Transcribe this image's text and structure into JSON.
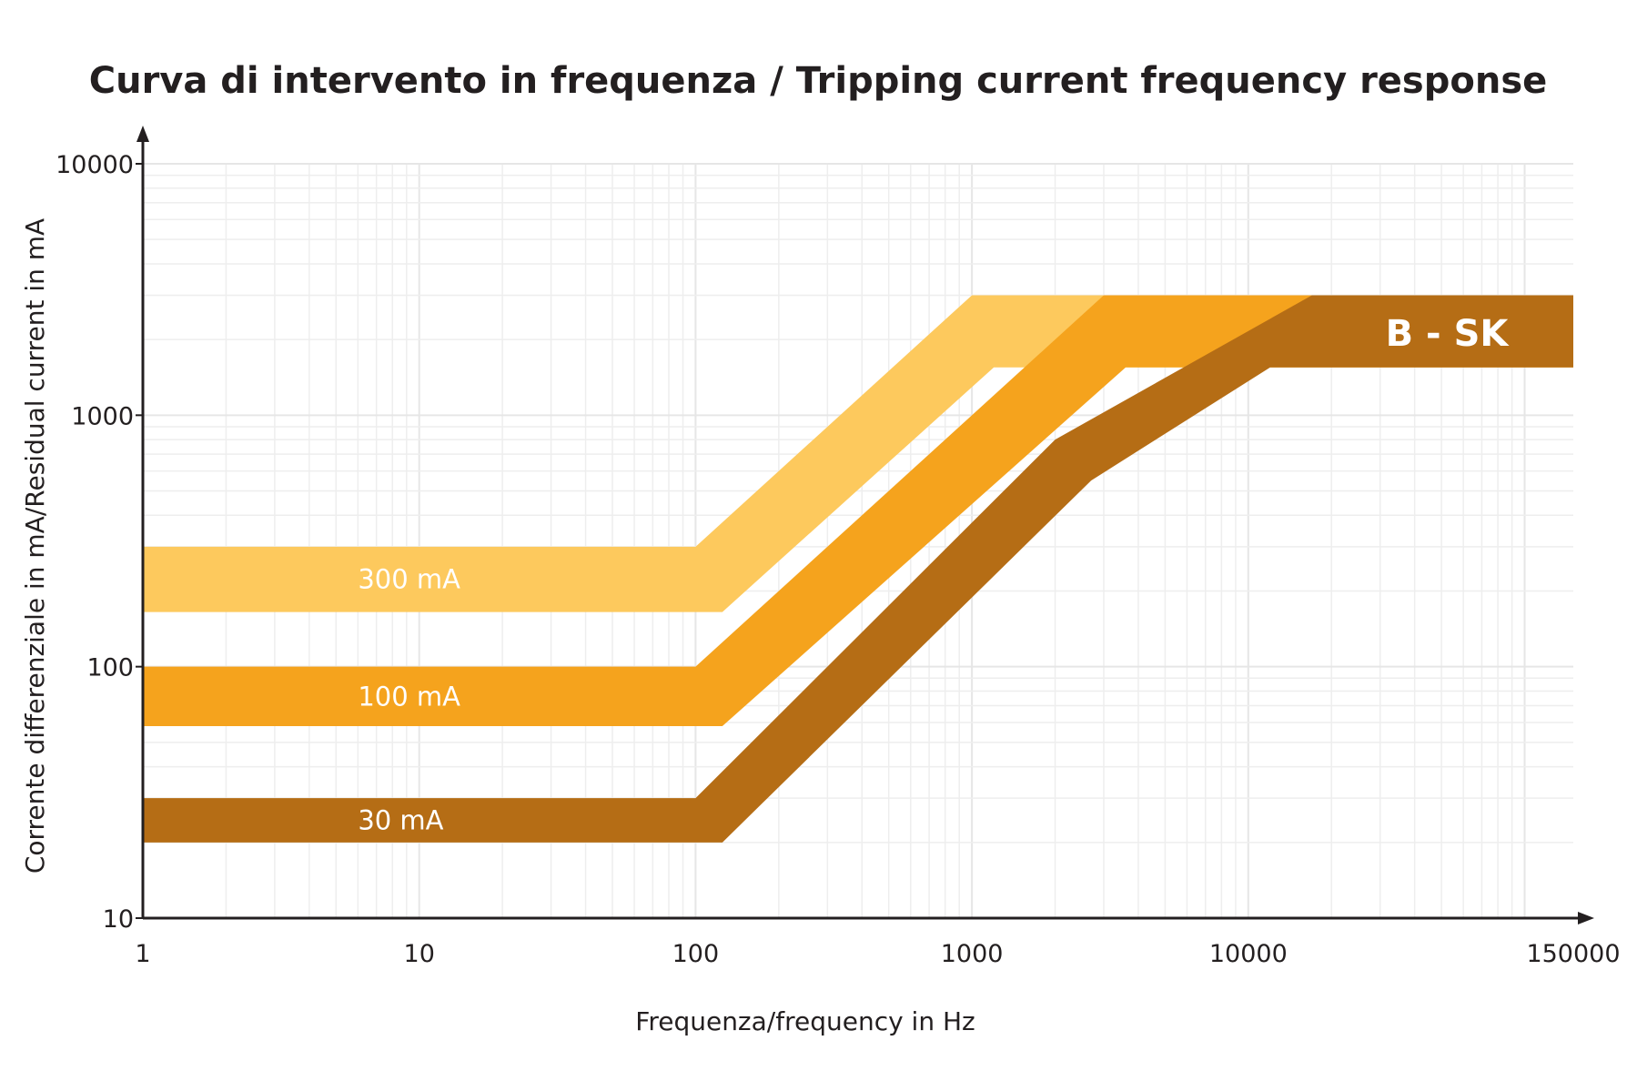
{
  "chart_data": {
    "type": "area",
    "title": "Curva di intervento in frequenza / Tripping current frequency response",
    "xlabel": "Frequenza/frequency in Hz",
    "ylabel": "Corrente differenziale in mA/Residual current in mA",
    "x_scale": "log",
    "y_scale": "log",
    "xlim": [
      1,
      150000
    ],
    "ylim": [
      10,
      10000
    ],
    "x_ticks": [
      "1",
      "10",
      "100",
      "1000",
      "10000",
      "150000"
    ],
    "x_tick_values": [
      1,
      10,
      100,
      1000,
      10000,
      150000
    ],
    "y_ticks": [
      "10",
      "100",
      "1000",
      "10000"
    ],
    "y_tick_values": [
      10,
      100,
      1000,
      10000
    ],
    "grid": true,
    "annotation": "B - SK",
    "series": [
      {
        "name": "300 mA",
        "color": "#fdc95d",
        "upper": [
          [
            1,
            300
          ],
          [
            100,
            300
          ],
          [
            1000,
            3000
          ],
          [
            150000,
            3000
          ]
        ],
        "lower": [
          [
            1,
            165
          ],
          [
            125,
            165
          ],
          [
            1200,
            1550
          ],
          [
            150000,
            1550
          ]
        ]
      },
      {
        "name": "100 mA",
        "color": "#f5a31d",
        "upper": [
          [
            1,
            100
          ],
          [
            100,
            100
          ],
          [
            3000,
            3000
          ],
          [
            150000,
            3000
          ]
        ],
        "lower": [
          [
            1,
            58
          ],
          [
            125,
            58
          ],
          [
            3600,
            1550
          ],
          [
            150000,
            1550
          ]
        ]
      },
      {
        "name": "30 mA",
        "color": "#b56d15",
        "upper": [
          [
            1,
            30
          ],
          [
            100,
            30
          ],
          [
            2000,
            800
          ],
          [
            17000,
            3000
          ],
          [
            150000,
            3000
          ]
        ],
        "lower": [
          [
            1,
            20
          ],
          [
            125,
            20
          ],
          [
            2700,
            550
          ],
          [
            12000,
            1550
          ],
          [
            150000,
            1550
          ]
        ]
      }
    ]
  }
}
